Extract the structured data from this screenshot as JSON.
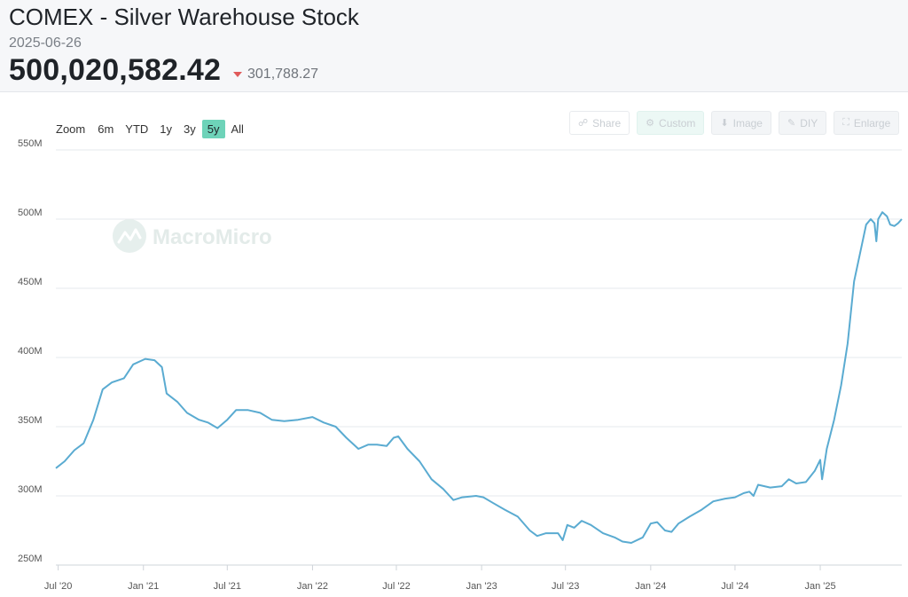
{
  "header": {
    "title": "COMEX - Silver Warehouse Stock",
    "date": "2025-06-26",
    "value": "500,020,582.42",
    "change": "301,788.27",
    "change_direction": "down",
    "down_color": "#e05a5a"
  },
  "zoom": {
    "label": "Zoom",
    "options": [
      "6m",
      "YTD",
      "1y",
      "3y",
      "5y",
      "All"
    ],
    "active": "5y",
    "active_color": "#6ed3b9"
  },
  "tools": {
    "share": "Share",
    "custom": "Custom",
    "image": "Image",
    "diy": "DIY",
    "enlarge": "Enlarge"
  },
  "watermark": "MacroMicro",
  "chart_data": {
    "type": "line",
    "line_color": "#5aabd1",
    "grid": true,
    "ylim": [
      250000000,
      550000000
    ],
    "y_ticks": [
      {
        "value": 250000000,
        "label": "250M"
      },
      {
        "value": 300000000,
        "label": "300M"
      },
      {
        "value": 350000000,
        "label": "350M"
      },
      {
        "value": 400000000,
        "label": "400M"
      },
      {
        "value": 450000000,
        "label": "450M"
      },
      {
        "value": 500000000,
        "label": "500M"
      },
      {
        "value": 550000000,
        "label": "550M"
      }
    ],
    "x_range": [
      "2020-06-26",
      "2025-06-26"
    ],
    "x_ticks": [
      {
        "date": "2020-07-01",
        "label": "Jul '20"
      },
      {
        "date": "2021-01-01",
        "label": "Jan '21"
      },
      {
        "date": "2021-07-01",
        "label": "Jul '21"
      },
      {
        "date": "2022-01-01",
        "label": "Jan '22"
      },
      {
        "date": "2022-07-01",
        "label": "Jul '22"
      },
      {
        "date": "2023-01-01",
        "label": "Jan '23"
      },
      {
        "date": "2023-07-01",
        "label": "Jul '23"
      },
      {
        "date": "2024-01-01",
        "label": "Jan '24"
      },
      {
        "date": "2024-07-01",
        "label": "Jul '24"
      },
      {
        "date": "2025-01-01",
        "label": "Jan '25"
      }
    ],
    "series": [
      {
        "points": [
          [
            "2020-06-26",
            320000000
          ],
          [
            "2020-07-15",
            325000000
          ],
          [
            "2020-08-05",
            333000000
          ],
          [
            "2020-08-25",
            338000000
          ],
          [
            "2020-09-15",
            355000000
          ],
          [
            "2020-10-05",
            377000000
          ],
          [
            "2020-10-25",
            382000000
          ],
          [
            "2020-11-20",
            385000000
          ],
          [
            "2020-12-10",
            395000000
          ],
          [
            "2021-01-05",
            399000000
          ],
          [
            "2021-01-25",
            398000000
          ],
          [
            "2021-02-10",
            393000000
          ],
          [
            "2021-02-20",
            374000000
          ],
          [
            "2021-03-15",
            368000000
          ],
          [
            "2021-04-05",
            360000000
          ],
          [
            "2021-05-01",
            355000000
          ],
          [
            "2021-05-20",
            353000000
          ],
          [
            "2021-06-10",
            349000000
          ],
          [
            "2021-07-01",
            355000000
          ],
          [
            "2021-07-20",
            362000000
          ],
          [
            "2021-08-15",
            362000000
          ],
          [
            "2021-09-10",
            360000000
          ],
          [
            "2021-10-05",
            355000000
          ],
          [
            "2021-11-01",
            354000000
          ],
          [
            "2021-12-01",
            355000000
          ],
          [
            "2022-01-01",
            357000000
          ],
          [
            "2022-01-25",
            353000000
          ],
          [
            "2022-02-20",
            350000000
          ],
          [
            "2022-03-15",
            342000000
          ],
          [
            "2022-04-10",
            334000000
          ],
          [
            "2022-05-01",
            337000000
          ],
          [
            "2022-05-20",
            337000000
          ],
          [
            "2022-06-10",
            336000000
          ],
          [
            "2022-06-25",
            342000000
          ],
          [
            "2022-07-05",
            343000000
          ],
          [
            "2022-07-25",
            334000000
          ],
          [
            "2022-08-20",
            325000000
          ],
          [
            "2022-09-15",
            312000000
          ],
          [
            "2022-10-10",
            305000000
          ],
          [
            "2022-11-01",
            297000000
          ],
          [
            "2022-11-20",
            299000000
          ],
          [
            "2022-12-20",
            300000000
          ],
          [
            "2023-01-05",
            299000000
          ],
          [
            "2023-01-25",
            295000000
          ],
          [
            "2023-02-20",
            290000000
          ],
          [
            "2023-03-20",
            285000000
          ],
          [
            "2023-04-15",
            275000000
          ],
          [
            "2023-05-01",
            271000000
          ],
          [
            "2023-05-20",
            273000000
          ],
          [
            "2023-06-15",
            273000000
          ],
          [
            "2023-06-25",
            268000000
          ],
          [
            "2023-07-05",
            279000000
          ],
          [
            "2023-07-20",
            277000000
          ],
          [
            "2023-08-05",
            282000000
          ],
          [
            "2023-08-25",
            279000000
          ],
          [
            "2023-09-20",
            273000000
          ],
          [
            "2023-10-15",
            270000000
          ],
          [
            "2023-11-01",
            267000000
          ],
          [
            "2023-11-20",
            266000000
          ],
          [
            "2023-12-15",
            270000000
          ],
          [
            "2024-01-01",
            280000000
          ],
          [
            "2024-01-15",
            281000000
          ],
          [
            "2024-02-01",
            275000000
          ],
          [
            "2024-02-15",
            274000000
          ],
          [
            "2024-03-01",
            280000000
          ],
          [
            "2024-03-25",
            285000000
          ],
          [
            "2024-04-20",
            290000000
          ],
          [
            "2024-05-15",
            296000000
          ],
          [
            "2024-06-10",
            298000000
          ],
          [
            "2024-07-01",
            299000000
          ],
          [
            "2024-07-20",
            302000000
          ],
          [
            "2024-08-01",
            303000000
          ],
          [
            "2024-08-10",
            300000000
          ],
          [
            "2024-08-20",
            308000000
          ],
          [
            "2024-09-15",
            306000000
          ],
          [
            "2024-10-10",
            307000000
          ],
          [
            "2024-10-25",
            312000000
          ],
          [
            "2024-11-10",
            309000000
          ],
          [
            "2024-12-01",
            310000000
          ],
          [
            "2024-12-20",
            318000000
          ],
          [
            "2025-01-01",
            326000000
          ],
          [
            "2025-01-05",
            312000000
          ],
          [
            "2025-01-15",
            334000000
          ],
          [
            "2025-01-31",
            355000000
          ],
          [
            "2025-02-15",
            380000000
          ],
          [
            "2025-03-01",
            410000000
          ],
          [
            "2025-03-15",
            455000000
          ],
          [
            "2025-03-31",
            480000000
          ],
          [
            "2025-04-10",
            496000000
          ],
          [
            "2025-04-20",
            500000000
          ],
          [
            "2025-04-28",
            497000000
          ],
          [
            "2025-05-02",
            484000000
          ],
          [
            "2025-05-06",
            500000000
          ],
          [
            "2025-05-15",
            505000000
          ],
          [
            "2025-05-25",
            502000000
          ],
          [
            "2025-06-01",
            496000000
          ],
          [
            "2025-06-10",
            495000000
          ],
          [
            "2025-06-18",
            497000000
          ],
          [
            "2025-06-26",
            500020582
          ]
        ]
      }
    ]
  }
}
